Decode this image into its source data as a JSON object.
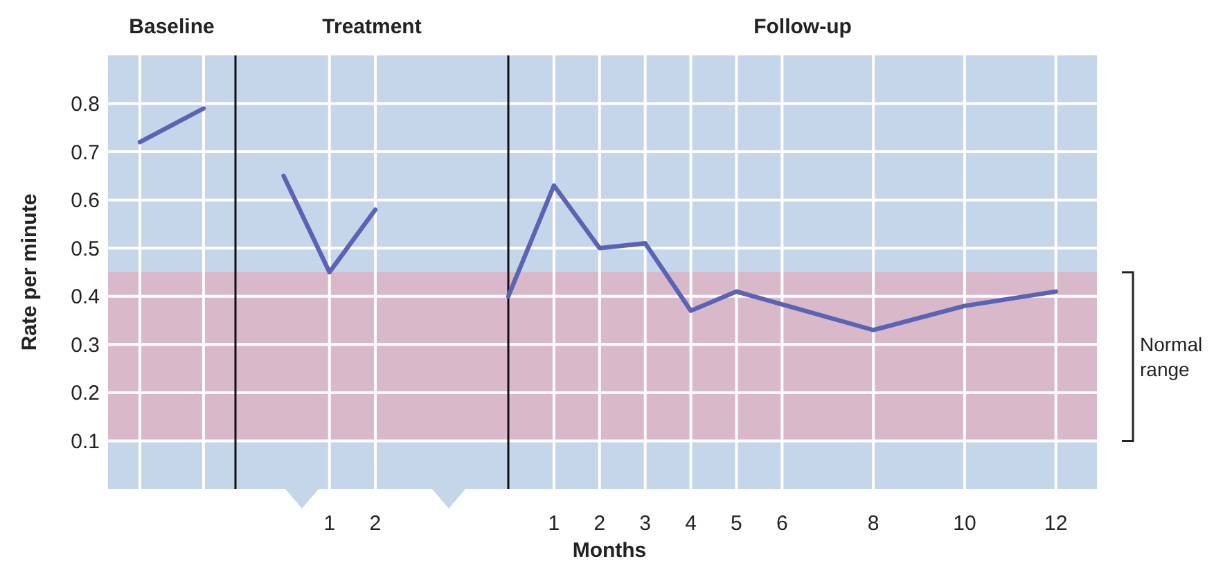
{
  "chart_data": [
    {
      "type": "line",
      "title": "Baseline",
      "ylabel": "Rate per minute",
      "categories": [
        null,
        null
      ],
      "series": [
        {
          "color": "#5b63b5",
          "values": [
            0.72,
            0.79
          ]
        }
      ],
      "ylim": [
        0,
        0.9
      ],
      "yticks": [
        0.1,
        0.2,
        0.3,
        0.4,
        0.5,
        0.6,
        0.7,
        0.8
      ],
      "tick_labels": "y",
      "grid": true,
      "marker": "none",
      "line_style": "solid",
      "bands": [
        {
          "axis": "y",
          "from": 0.1,
          "to": 0.45,
          "color": "#d9b8ca"
        }
      ]
    },
    {
      "type": "line",
      "title": "Treatment",
      "x": [
        0,
        1,
        2
      ],
      "series": [
        {
          "color": "#5b63b5",
          "values": [
            0.65,
            0.45,
            0.58
          ]
        }
      ],
      "xlim": [
        -1.05,
        4.9
      ],
      "xticks": [
        1,
        2
      ],
      "ylim": [
        0,
        0.9
      ],
      "yticks": [
        0.1,
        0.2,
        0.3,
        0.4,
        0.5,
        0.6,
        0.7,
        0.8
      ],
      "tick_labels": "x",
      "grid": true,
      "marker": "none",
      "line_style": "solid",
      "bands": [
        {
          "axis": "y",
          "from": 0.1,
          "to": 0.45,
          "color": "#d9b8ca"
        }
      ]
    },
    {
      "type": "line",
      "title": "Follow-up",
      "xlabel": "Months",
      "x": [
        0,
        1,
        2,
        3,
        4,
        5,
        8,
        10,
        12
      ],
      "series": [
        {
          "color": "#5b63b5",
          "values": [
            0.4,
            0.63,
            0.5,
            0.51,
            0.37,
            0.41,
            0.33,
            0.38,
            0.41
          ]
        }
      ],
      "xlim": [
        0,
        12.9
      ],
      "xticks": [
        1,
        2,
        3,
        4,
        5,
        6,
        8,
        10,
        12
      ],
      "ylim": [
        0,
        0.9
      ],
      "yticks": [
        0.1,
        0.2,
        0.3,
        0.4,
        0.5,
        0.6,
        0.7,
        0.8
      ],
      "tick_labels": "x",
      "grid": true,
      "marker": "none",
      "line_style": "solid",
      "bands": [
        {
          "axis": "y",
          "from": 0.1,
          "to": 0.45,
          "label": "Normal range",
          "color": "#d9b8ca"
        }
      ]
    }
  ]
}
